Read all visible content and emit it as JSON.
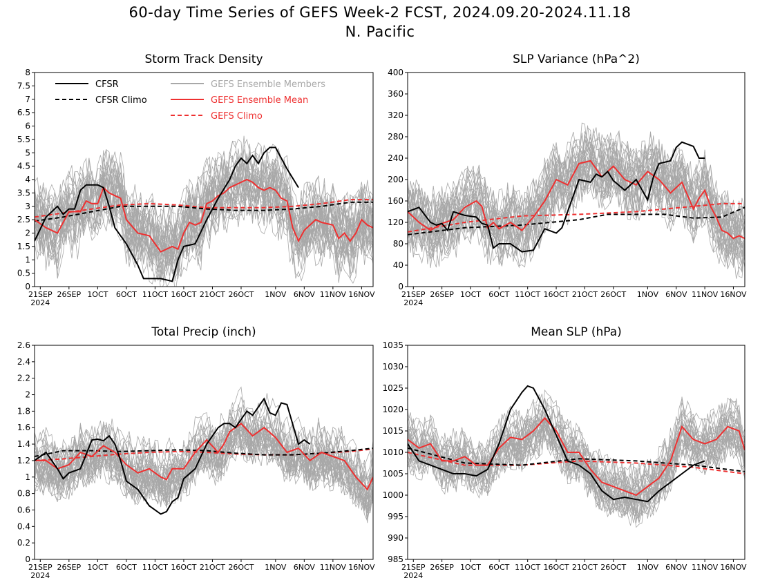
{
  "title_line1": "60-day Time Series of GEFS Week-2 FCST, 2024.09.20-2024.11.18",
  "title_line2": "N. Pacific",
  "legend": {
    "cfsr": "CFSR",
    "cfsr_climo": "CFSR Climo",
    "gefs_members": "GEFS Ensemble Members",
    "gefs_mean": "GEFS Ensemble Mean",
    "gefs_climo": "GEFS Climo"
  },
  "colors": {
    "cfsr": "#000000",
    "gefs_mean": "#ee3030",
    "members": "#a8a8a8",
    "legend_members_text": "#a8a8a8"
  },
  "chart_data": [
    {
      "type": "line",
      "title": "Storm Track Density",
      "xlabel": "",
      "ylabel": "",
      "x_range": [
        "2024-09-20",
        "2024-11-18"
      ],
      "x_ticks": [
        "21SEP",
        "26SEP",
        "1OCT",
        "6OCT",
        "11OCT",
        "16OCT",
        "21OCT",
        "26OCT",
        "1NOV",
        "6NOV",
        "11NOV",
        "16NOV"
      ],
      "x_year": "2024",
      "ylim": [
        0,
        8
      ],
      "y_ticks": [
        "0",
        "0.5",
        "1",
        "1.5",
        "2",
        "2.5",
        "3",
        "3.5",
        "4",
        "4.5",
        "5",
        "5.5",
        "6",
        "6.5",
        "7",
        "7.5",
        "8"
      ],
      "members_band": {
        "description_values": "ensemble member spread",
        "approx_half_width": 1.6
      },
      "series": [
        {
          "name": "CFSR",
          "x_day": [
            0,
            2,
            4,
            5,
            6,
            7,
            8,
            9,
            10,
            11,
            12,
            13,
            14,
            16,
            18,
            19,
            20,
            22,
            24,
            25,
            26,
            28,
            30,
            32,
            34,
            35,
            36,
            37,
            38,
            39,
            40,
            41,
            42,
            43,
            44,
            46
          ],
          "values": [
            1.7,
            2.6,
            3.0,
            2.7,
            2.9,
            2.9,
            3.6,
            3.8,
            3.8,
            3.8,
            3.7,
            3.0,
            2.2,
            1.6,
            0.8,
            0.3,
            0.3,
            0.3,
            0.2,
            1.0,
            1.5,
            1.6,
            2.5,
            3.3,
            4.0,
            4.5,
            4.8,
            4.6,
            4.9,
            4.6,
            5.0,
            5.2,
            5.2,
            4.8,
            4.4,
            3.7
          ]
        },
        {
          "name": "CFSR Climo",
          "x_day": [
            0,
            5,
            10,
            15,
            20,
            25,
            30,
            35,
            40,
            45,
            50,
            55,
            59
          ],
          "values": [
            2.45,
            2.6,
            2.8,
            3.0,
            3.0,
            3.0,
            2.9,
            2.85,
            2.85,
            2.9,
            3.0,
            3.15,
            3.15
          ]
        },
        {
          "name": "GEFS Ensemble Mean",
          "x_day": [
            0,
            2,
            4,
            6,
            8,
            9,
            10,
            11,
            12,
            13,
            14,
            15,
            16,
            18,
            20,
            21,
            22,
            24,
            25,
            26,
            27,
            28,
            29,
            30,
            31,
            32,
            33,
            34,
            35,
            36,
            37,
            38,
            39,
            40,
            41,
            42,
            43,
            44,
            45,
            46,
            47,
            48,
            49,
            50,
            52,
            53,
            54,
            55,
            56,
            57,
            58,
            59
          ],
          "values": [
            2.5,
            2.2,
            2.0,
            2.8,
            2.8,
            3.2,
            3.1,
            3.1,
            3.7,
            3.5,
            3.4,
            3.3,
            2.5,
            2.0,
            1.9,
            1.6,
            1.3,
            1.5,
            1.4,
            2.0,
            2.4,
            2.3,
            2.4,
            3.1,
            3.2,
            3.4,
            3.5,
            3.7,
            3.8,
            3.9,
            4.0,
            3.9,
            3.7,
            3.6,
            3.7,
            3.6,
            3.3,
            3.2,
            2.2,
            1.7,
            2.1,
            2.3,
            2.5,
            2.4,
            2.3,
            1.8,
            2.0,
            1.7,
            2.0,
            2.5,
            2.3,
            2.2
          ]
        },
        {
          "name": "GEFS Climo",
          "x_day": [
            0,
            5,
            10,
            15,
            20,
            25,
            30,
            35,
            40,
            45,
            50,
            55,
            59
          ],
          "values": [
            2.6,
            2.75,
            2.9,
            3.05,
            3.1,
            3.05,
            2.95,
            2.95,
            2.95,
            3.0,
            3.1,
            3.25,
            3.25
          ]
        }
      ]
    },
    {
      "type": "line",
      "title": "SLP Variance (hPa^2)",
      "xlabel": "",
      "ylabel": "",
      "x_range": [
        "2024-09-20",
        "2024-11-18"
      ],
      "x_ticks": [
        "21SEP",
        "26SEP",
        "1OCT",
        "6OCT",
        "11OCT",
        "16OCT",
        "21OCT",
        "26OCT",
        "1NOV",
        "6NOV",
        "11NOV",
        "16NOV"
      ],
      "x_year": "2024",
      "ylim": [
        0,
        400
      ],
      "y_ticks": [
        "0",
        "40",
        "80",
        "120",
        "160",
        "200",
        "240",
        "280",
        "320",
        "360",
        "400"
      ],
      "members_band": {
        "description_values": "ensemble member spread",
        "approx_half_width": 70
      },
      "series": [
        {
          "name": "CFSR",
          "x_day": [
            0,
            2,
            4,
            5,
            6,
            7,
            8,
            10,
            12,
            13,
            14,
            15,
            16,
            18,
            20,
            22,
            24,
            26,
            27,
            28,
            30,
            32,
            33,
            34,
            35,
            36,
            38,
            40,
            42,
            43,
            44,
            46,
            47,
            48,
            50,
            51,
            52
          ],
          "values": [
            140,
            148,
            120,
            115,
            118,
            105,
            140,
            133,
            130,
            118,
            115,
            72,
            80,
            80,
            65,
            68,
            108,
            100,
            110,
            140,
            200,
            195,
            210,
            205,
            215,
            198,
            180,
            200,
            162,
            205,
            230,
            235,
            260,
            270,
            262,
            240,
            240
          ]
        },
        {
          "name": "CFSR Climo",
          "x_day": [
            0,
            10,
            20,
            30,
            35,
            40,
            45,
            50,
            55,
            59
          ],
          "values": [
            97,
            110,
            115,
            125,
            135,
            135,
            135,
            128,
            130,
            148
          ]
        },
        {
          "name": "GEFS Ensemble Mean",
          "x_day": [
            0,
            2,
            4,
            6,
            8,
            10,
            12,
            13,
            14,
            15,
            16,
            18,
            20,
            22,
            24,
            26,
            28,
            30,
            32,
            34,
            36,
            38,
            40,
            42,
            44,
            46,
            48,
            50,
            51,
            52,
            53,
            54,
            55,
            56,
            57,
            58,
            59
          ],
          "values": [
            140,
            120,
            105,
            118,
            125,
            148,
            160,
            150,
            110,
            120,
            108,
            120,
            105,
            130,
            160,
            200,
            190,
            230,
            235,
            205,
            225,
            200,
            190,
            215,
            200,
            175,
            195,
            145,
            165,
            180,
            150,
            130,
            105,
            100,
            90,
            95,
            90
          ]
        },
        {
          "name": "GEFS Climo",
          "x_day": [
            0,
            10,
            20,
            30,
            40,
            45,
            50,
            55,
            59
          ],
          "values": [
            102,
            120,
            132,
            135,
            140,
            145,
            150,
            155,
            155
          ]
        }
      ]
    },
    {
      "type": "line",
      "title": "Total Precip (inch)",
      "xlabel": "",
      "ylabel": "",
      "x_range": [
        "2024-09-20",
        "2024-11-18"
      ],
      "x_ticks": [
        "21SEP",
        "26SEP",
        "1OCT",
        "6OCT",
        "11OCT",
        "16OCT",
        "21OCT",
        "26OCT",
        "1NOV",
        "6NOV",
        "11NOV",
        "16NOV"
      ],
      "x_year": "2024",
      "ylim": [
        0,
        2.6
      ],
      "y_ticks": [
        "0",
        "0.2",
        "0.4",
        "0.6",
        "0.8",
        "1",
        "1.2",
        "1.4",
        "1.6",
        "1.8",
        "2",
        "2.2",
        "2.4",
        "2.6"
      ],
      "members_band": {
        "description_values": "ensemble member spread",
        "approx_half_width": 0.38
      },
      "series": [
        {
          "name": "CFSR",
          "x_day": [
            0,
            2,
            4,
            5,
            6,
            8,
            10,
            11,
            12,
            13,
            14,
            15,
            16,
            18,
            20,
            22,
            23,
            24,
            25,
            26,
            28,
            30,
            32,
            33,
            34,
            35,
            36,
            37,
            38,
            39,
            40,
            41,
            42,
            43,
            44,
            46,
            47,
            48
          ],
          "values": [
            1.2,
            1.3,
            1.1,
            0.98,
            1.05,
            1.1,
            1.45,
            1.46,
            1.44,
            1.5,
            1.4,
            1.2,
            0.95,
            0.85,
            0.65,
            0.55,
            0.58,
            0.7,
            0.75,
            0.98,
            1.1,
            1.4,
            1.6,
            1.65,
            1.65,
            1.6,
            1.7,
            1.8,
            1.75,
            1.85,
            1.95,
            1.78,
            1.75,
            1.9,
            1.88,
            1.4,
            1.45,
            1.4
          ]
        },
        {
          "name": "CFSR Climo",
          "x_day": [
            0,
            5,
            10,
            15,
            20,
            25,
            30,
            35,
            40,
            45,
            50,
            55,
            59
          ],
          "values": [
            1.25,
            1.32,
            1.32,
            1.31,
            1.32,
            1.33,
            1.32,
            1.29,
            1.27,
            1.27,
            1.29,
            1.32,
            1.35
          ]
        },
        {
          "name": "GEFS Ensemble Mean",
          "x_day": [
            0,
            2,
            4,
            6,
            8,
            10,
            12,
            14,
            16,
            18,
            20,
            22,
            23,
            24,
            26,
            28,
            30,
            32,
            33,
            34,
            36,
            38,
            40,
            42,
            44,
            46,
            48,
            50,
            52,
            54,
            56,
            58,
            59
          ],
          "values": [
            1.2,
            1.2,
            1.1,
            1.15,
            1.3,
            1.25,
            1.38,
            1.3,
            1.15,
            1.05,
            1.1,
            1.0,
            0.97,
            1.1,
            1.1,
            1.3,
            1.45,
            1.3,
            1.4,
            1.55,
            1.65,
            1.5,
            1.6,
            1.48,
            1.3,
            1.35,
            1.2,
            1.3,
            1.25,
            1.2,
            1.0,
            0.85,
            1.0
          ]
        },
        {
          "name": "GEFS Climo",
          "x_day": [
            0,
            5,
            10,
            15,
            20,
            25,
            30,
            35,
            40,
            45,
            50,
            55,
            59
          ],
          "values": [
            1.2,
            1.22,
            1.25,
            1.28,
            1.3,
            1.31,
            1.3,
            1.28,
            1.27,
            1.27,
            1.29,
            1.31,
            1.34
          ]
        }
      ]
    },
    {
      "type": "line",
      "title": "Mean SLP (hPa)",
      "xlabel": "",
      "ylabel": "",
      "x_range": [
        "2024-09-20",
        "2024-11-18"
      ],
      "x_ticks": [
        "21SEP",
        "26SEP",
        "1OCT",
        "6OCT",
        "11OCT",
        "16OCT",
        "21OCT",
        "26OCT",
        "1NOV",
        "6NOV",
        "11NOV",
        "16NOV"
      ],
      "x_year": "2024",
      "ylim": [
        985,
        1035
      ],
      "y_ticks": [
        "985",
        "990",
        "995",
        "1000",
        "1005",
        "1010",
        "1015",
        "1020",
        "1025",
        "1030",
        "1035"
      ],
      "members_band": {
        "description_values": "ensemble member spread",
        "approx_half_width": 6.5
      },
      "series": [
        {
          "name": "CFSR",
          "x_day": [
            0,
            2,
            4,
            6,
            8,
            10,
            12,
            14,
            16,
            18,
            20,
            21,
            22,
            24,
            26,
            28,
            30,
            32,
            34,
            36,
            38,
            40,
            42,
            44,
            45,
            46,
            48,
            50,
            52
          ],
          "values": [
            1012,
            1008,
            1007,
            1006,
            1005,
            1005,
            1004.5,
            1006,
            1012,
            1020,
            1024,
            1025.5,
            1025,
            1020,
            1014,
            1008,
            1007,
            1005,
            1001,
            999,
            999.5,
            999,
            998.5,
            1001,
            1002,
            1003,
            1005,
            1007,
            1008
          ]
        },
        {
          "name": "CFSR Climo",
          "x_day": [
            0,
            10,
            20,
            30,
            40,
            50,
            59
          ],
          "values": [
            1011,
            1007.5,
            1007,
            1008.5,
            1008,
            1007,
            1005.5
          ]
        },
        {
          "name": "GEFS Ensemble Mean",
          "x_day": [
            0,
            2,
            4,
            6,
            8,
            10,
            12,
            14,
            16,
            18,
            20,
            22,
            24,
            26,
            28,
            30,
            32,
            34,
            36,
            38,
            40,
            42,
            44,
            46,
            48,
            50,
            52,
            54,
            56,
            58,
            59
          ],
          "values": [
            1013,
            1011,
            1012,
            1008,
            1008,
            1009,
            1007,
            1007,
            1011,
            1013.5,
            1013,
            1015,
            1018,
            1015,
            1010,
            1010,
            1006,
            1003,
            1002,
            1001,
            1000,
            1002,
            1004,
            1008,
            1016,
            1013,
            1012,
            1013,
            1016,
            1015,
            1010.5
          ]
        },
        {
          "name": "GEFS Climo",
          "x_day": [
            0,
            10,
            20,
            30,
            40,
            50,
            59
          ],
          "values": [
            1010,
            1007,
            1007,
            1008,
            1007.5,
            1006.5,
            1005
          ]
        }
      ]
    }
  ]
}
